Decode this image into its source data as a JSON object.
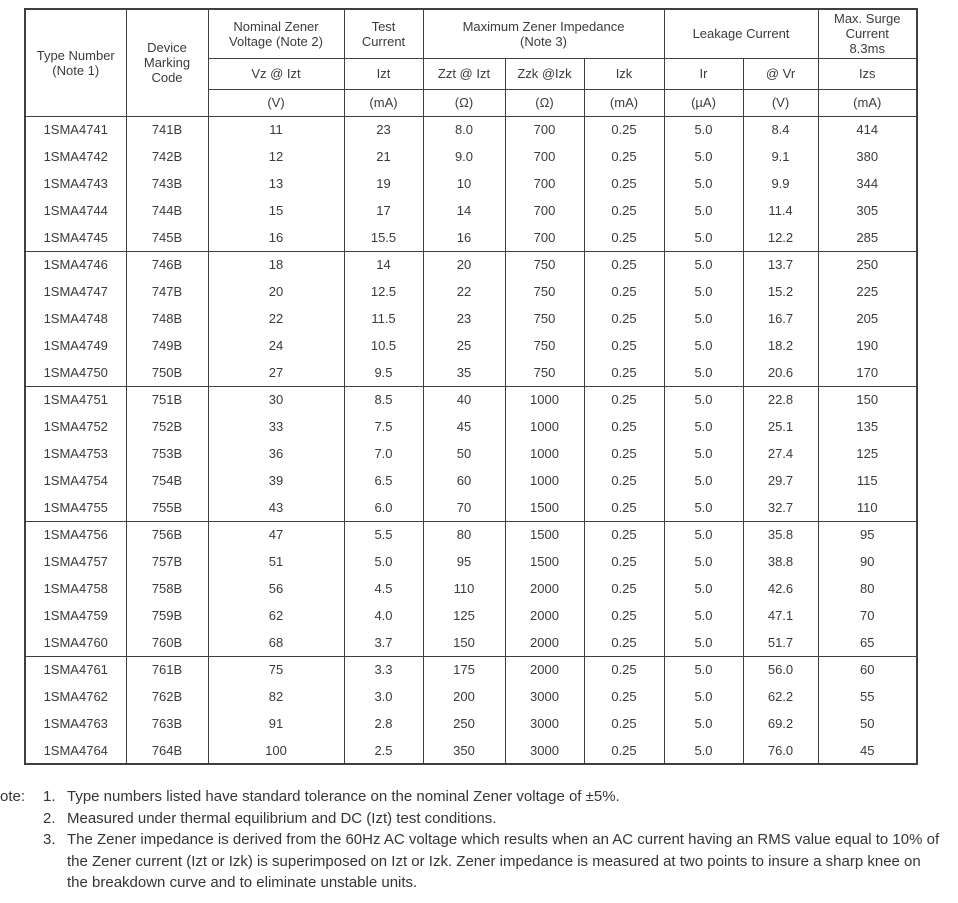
{
  "table": {
    "header": {
      "type_number": "Type Number\n(Note 1)",
      "device_marking": "Device\nMarking\nCode",
      "nominal_zener": "Nominal Zener\nVoltage (Note 2)",
      "test_current": "Test\nCurrent",
      "max_impedance": "Maximum Zener Impedance\n(Note 3)",
      "leakage": "Leakage Current",
      "max_surge": "Max. Surge\nCurrent\n8.3ms",
      "sub_vz": "Vz @ Izt",
      "sub_izt": "Izt",
      "sub_zzt": "Zzt @ Izt",
      "sub_zzk": "Zzk @Izk",
      "sub_izk": "Izk",
      "sub_ir": "Ir",
      "sub_vr": "@ Vr",
      "sub_izs": "Izs",
      "unit_vz": "(V)",
      "unit_izt": "(mA)",
      "unit_zzt": "(Ω)",
      "unit_zzk": "(Ω)",
      "unit_izk": "(mA)",
      "unit_ir": "(µA)",
      "unit_vr": "(V)",
      "unit_izs": "(mA)"
    },
    "rows": [
      [
        "1SMA4741",
        "741B",
        "11",
        "23",
        "8.0",
        "700",
        "0.25",
        "5.0",
        "8.4",
        "414"
      ],
      [
        "1SMA4742",
        "742B",
        "12",
        "21",
        "9.0",
        "700",
        "0.25",
        "5.0",
        "9.1",
        "380"
      ],
      [
        "1SMA4743",
        "743B",
        "13",
        "19",
        "10",
        "700",
        "0.25",
        "5.0",
        "9.9",
        "344"
      ],
      [
        "1SMA4744",
        "744B",
        "15",
        "17",
        "14",
        "700",
        "0.25",
        "5.0",
        "11.4",
        "305"
      ],
      [
        "1SMA4745",
        "745B",
        "16",
        "15.5",
        "16",
        "700",
        "0.25",
        "5.0",
        "12.2",
        "285"
      ],
      [
        "1SMA4746",
        "746B",
        "18",
        "14",
        "20",
        "750",
        "0.25",
        "5.0",
        "13.7",
        "250"
      ],
      [
        "1SMA4747",
        "747B",
        "20",
        "12.5",
        "22",
        "750",
        "0.25",
        "5.0",
        "15.2",
        "225"
      ],
      [
        "1SMA4748",
        "748B",
        "22",
        "11.5",
        "23",
        "750",
        "0.25",
        "5.0",
        "16.7",
        "205"
      ],
      [
        "1SMA4749",
        "749B",
        "24",
        "10.5",
        "25",
        "750",
        "0.25",
        "5.0",
        "18.2",
        "190"
      ],
      [
        "1SMA4750",
        "750B",
        "27",
        "9.5",
        "35",
        "750",
        "0.25",
        "5.0",
        "20.6",
        "170"
      ],
      [
        "1SMA4751",
        "751B",
        "30",
        "8.5",
        "40",
        "1000",
        "0.25",
        "5.0",
        "22.8",
        "150"
      ],
      [
        "1SMA4752",
        "752B",
        "33",
        "7.5",
        "45",
        "1000",
        "0.25",
        "5.0",
        "25.1",
        "135"
      ],
      [
        "1SMA4753",
        "753B",
        "36",
        "7.0",
        "50",
        "1000",
        "0.25",
        "5.0",
        "27.4",
        "125"
      ],
      [
        "1SMA4754",
        "754B",
        "39",
        "6.5",
        "60",
        "1000",
        "0.25",
        "5.0",
        "29.7",
        "115"
      ],
      [
        "1SMA4755",
        "755B",
        "43",
        "6.0",
        "70",
        "1500",
        "0.25",
        "5.0",
        "32.7",
        "110"
      ],
      [
        "1SMA4756",
        "756B",
        "47",
        "5.5",
        "80",
        "1500",
        "0.25",
        "5.0",
        "35.8",
        "95"
      ],
      [
        "1SMA4757",
        "757B",
        "51",
        "5.0",
        "95",
        "1500",
        "0.25",
        "5.0",
        "38.8",
        "90"
      ],
      [
        "1SMA4758",
        "758B",
        "56",
        "4.5",
        "110",
        "2000",
        "0.25",
        "5.0",
        "42.6",
        "80"
      ],
      [
        "1SMA4759",
        "759B",
        "62",
        "4.0",
        "125",
        "2000",
        "0.25",
        "5.0",
        "47.1",
        "70"
      ],
      [
        "1SMA4760",
        "760B",
        "68",
        "3.7",
        "150",
        "2000",
        "0.25",
        "5.0",
        "51.7",
        "65"
      ],
      [
        "1SMA4761",
        "761B",
        "75",
        "3.3",
        "175",
        "2000",
        "0.25",
        "5.0",
        "56.0",
        "60"
      ],
      [
        "1SMA4762",
        "762B",
        "82",
        "3.0",
        "200",
        "3000",
        "0.25",
        "5.0",
        "62.2",
        "55"
      ],
      [
        "1SMA4763",
        "763B",
        "91",
        "2.8",
        "250",
        "3000",
        "0.25",
        "5.0",
        "69.2",
        "50"
      ],
      [
        "1SMA4764",
        "764B",
        "100",
        "2.5",
        "350",
        "3000",
        "0.25",
        "5.0",
        "76.0",
        "45"
      ]
    ]
  },
  "notes": {
    "label": "ote:",
    "items": [
      {
        "num": "1.",
        "text": "Type numbers listed have standard tolerance on the nominal Zener voltage of ±5%."
      },
      {
        "num": "2.",
        "text": "Measured under thermal equilibrium and DC (Izt) test conditions."
      },
      {
        "num": "3.",
        "text": "The Zener impedance is derived from the 60Hz AC voltage which results when an AC current having an RMS value equal to 10% of the Zener current (Izt or Izk) is superimposed on Izt or Izk. Zener impedance is measured at two points to insure a sharp knee on the breakdown curve and to eliminate unstable units."
      }
    ]
  }
}
